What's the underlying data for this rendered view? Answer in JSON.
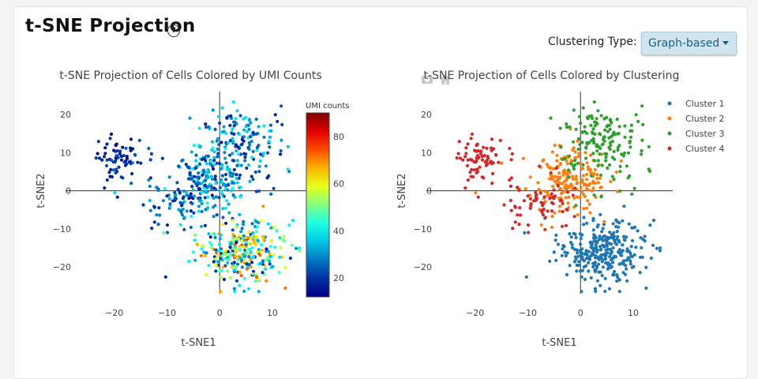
{
  "page": {
    "title": "t-SNE Projection",
    "help_icon": "?",
    "clustering_label": "Clustering Type:",
    "clustering_selected": "Graph-based"
  },
  "chart_data": [
    {
      "type": "scatter",
      "title": "t-SNE Projection of Cells Colored by UMI Counts",
      "xlabel": "t-SNE1",
      "ylabel": "t-SNE2",
      "xlim": [
        -24,
        16
      ],
      "ylim": [
        -27,
        26
      ],
      "xticks": [
        -20,
        -10,
        0,
        10
      ],
      "yticks": [
        -20,
        -10,
        0,
        10,
        20
      ],
      "colorscale": "jet",
      "colorbar": {
        "title": "UMI counts",
        "range": [
          12,
          90
        ],
        "ticks": [
          20,
          40,
          60,
          80
        ]
      },
      "groups": [
        {
          "region": "left cluster (x -23 to -14, y 3 to 14)",
          "approx_points": 70,
          "umi_range": [
            13,
            26
          ]
        },
        {
          "region": "upper body (x -15 to 14, y -5 to 25)",
          "approx_points": 310,
          "umi_range": [
            14,
            42
          ]
        },
        {
          "region": "lower-right body (x -4 to 14, y -25 to -8)",
          "approx_points": 300,
          "umi_range": [
            15,
            75
          ]
        }
      ]
    },
    {
      "type": "scatter",
      "title": "t-SNE Projection of Cells Colored by Clustering",
      "xlabel": "t-SNE1",
      "ylabel": "t-SNE2",
      "xlim": [
        -24,
        16
      ],
      "ylim": [
        -27,
        26
      ],
      "xticks": [
        -20,
        -10,
        0,
        10
      ],
      "yticks": [
        -20,
        -10,
        0,
        10,
        20
      ],
      "legend_position": "top-right",
      "series": [
        {
          "name": "Cluster 1",
          "color": "#1f77b4",
          "approx_points": 300,
          "region": "lower-right (x -4 to 14, y -25 to -8)"
        },
        {
          "name": "Cluster 2",
          "color": "#ff7f0e",
          "approx_points": 200,
          "region": "center (x -14 to 6, y -10 to 12)"
        },
        {
          "name": "Cluster 3",
          "color": "#2ca02c",
          "approx_points": 160,
          "region": "upper-right (x -7 to 14, y 4 to 25)"
        },
        {
          "name": "Cluster 4",
          "color": "#d62728",
          "approx_points": 140,
          "region": "left and lower-left (x -23 to -5, y -12 to 14)"
        }
      ]
    }
  ],
  "icons": {
    "camera": "camera-icon",
    "home": "home-icon"
  }
}
